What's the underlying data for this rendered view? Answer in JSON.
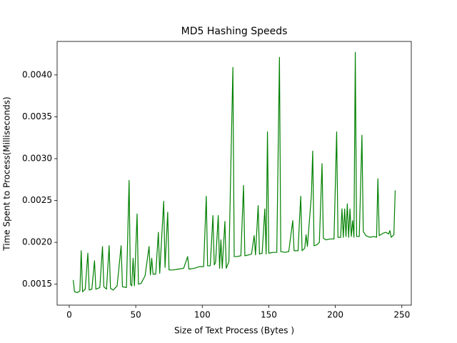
{
  "chart_data": {
    "type": "line",
    "title": "MD5 Hashing Speeds",
    "x_label": "Size of Text Process (Bytes )",
    "y_label": "Time Spent to Process(Milliseconds)",
    "color": "#008000",
    "xlim": [
      -9.1,
      257.1
    ],
    "xticks": [
      0,
      50,
      100,
      150,
      200,
      250
    ],
    "ylim": [
      0.00125,
      0.0044
    ],
    "yticks": [
      0.0015,
      {
        "value": 0.002,
        "label": "0.0020"
      },
      0.0025,
      {
        "value": 0.003,
        "label": "0.0030"
      },
      0.0035,
      {
        "value": 0.004,
        "label": "0.0040"
      }
    ],
    "x": [
      3,
      4,
      6,
      8,
      9,
      10,
      12,
      14,
      15,
      17,
      19,
      20,
      23,
      25,
      26,
      28,
      30,
      31,
      33,
      36,
      39,
      40,
      43,
      45,
      46,
      47,
      48,
      49,
      51,
      52,
      54,
      57,
      60,
      61,
      62,
      63,
      65,
      67,
      68,
      71,
      72,
      74,
      75,
      78,
      82,
      86,
      89,
      90,
      94,
      98,
      101,
      103,
      104,
      106,
      108,
      109,
      110,
      112,
      113,
      114,
      115,
      117,
      118,
      120,
      123,
      124,
      126,
      129,
      131,
      132,
      135,
      137,
      139,
      140,
      142,
      143,
      145,
      147,
      148,
      149,
      150,
      153,
      156,
      158,
      159,
      162,
      165,
      168,
      169,
      172,
      173,
      174,
      175,
      177,
      178,
      179,
      182,
      183,
      184,
      186,
      188,
      190,
      191,
      193,
      196,
      199,
      201,
      202,
      204,
      205,
      206,
      207,
      208,
      209,
      210,
      211,
      212,
      213,
      214,
      215,
      216,
      218,
      220,
      221,
      223,
      226,
      229,
      231,
      232,
      233,
      236,
      238,
      240,
      241,
      242,
      244,
      245
    ],
    "values": [
      0.00155,
      0.00141,
      0.0014,
      0.00142,
      0.0019,
      0.00141,
      0.00144,
      0.00187,
      0.00143,
      0.00144,
      0.00178,
      0.00144,
      0.00146,
      0.00195,
      0.00147,
      0.00144,
      0.00196,
      0.00145,
      0.00143,
      0.00148,
      0.00196,
      0.00147,
      0.00146,
      0.00274,
      0.0015,
      0.00148,
      0.00181,
      0.00148,
      0.00234,
      0.0015,
      0.00151,
      0.0016,
      0.00195,
      0.00161,
      0.00181,
      0.00162,
      0.00162,
      0.00212,
      0.00163,
      0.00249,
      0.0017,
      0.00236,
      0.00167,
      0.00167,
      0.00168,
      0.00169,
      0.00183,
      0.00168,
      0.00169,
      0.00171,
      0.00171,
      0.00255,
      0.00172,
      0.00172,
      0.00232,
      0.00173,
      0.00176,
      0.00232,
      0.00169,
      0.00203,
      0.00169,
      0.00225,
      0.00169,
      0.00177,
      0.00409,
      0.00183,
      0.00183,
      0.00184,
      0.00268,
      0.00184,
      0.00185,
      0.00186,
      0.00208,
      0.00185,
      0.00244,
      0.00186,
      0.00187,
      0.0024,
      0.00186,
      0.00332,
      0.00187,
      0.00188,
      0.00188,
      0.00421,
      0.00189,
      0.00188,
      0.00189,
      0.00226,
      0.0019,
      0.0019,
      0.00225,
      0.00255,
      0.0019,
      0.00193,
      0.00209,
      0.00195,
      0.00256,
      0.00309,
      0.00196,
      0.00197,
      0.002,
      0.00294,
      0.00205,
      0.00203,
      0.00204,
      0.00204,
      0.00332,
      0.00206,
      0.00206,
      0.0024,
      0.00206,
      0.0024,
      0.00207,
      0.00246,
      0.00206,
      0.0024,
      0.00207,
      0.00226,
      0.00206,
      0.00427,
      0.00207,
      0.00207,
      0.00328,
      0.00213,
      0.00208,
      0.00206,
      0.00207,
      0.00206,
      0.00276,
      0.00208,
      0.00211,
      0.00212,
      0.0021,
      0.00214,
      0.00206,
      0.00209,
      0.00262
    ]
  }
}
